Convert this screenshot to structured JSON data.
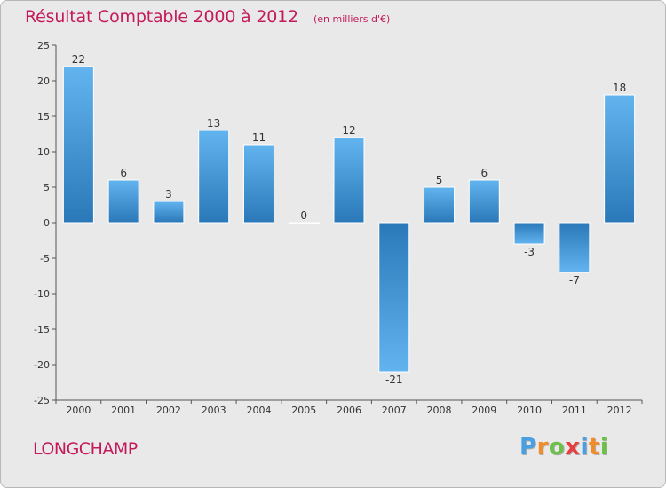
{
  "title": "Résultat Comptable 2000 à 2012",
  "unit_note": "(en milliers d'€)",
  "commune": "LONGCHAMP",
  "logo": {
    "letters": [
      "P",
      "r",
      "o",
      "x",
      "i",
      "t",
      "i"
    ],
    "colors": [
      "#4a9fe0",
      "#f08c2a",
      "#6cc04a",
      "#e83e3e",
      "#4a9fe0",
      "#f08c2a",
      "#6cc04a"
    ]
  },
  "colors": {
    "title": "#c41a5b",
    "bar_light": "#62b4ef",
    "bar_dark": "#2a78b8",
    "background": "#e9e9e9"
  },
  "chart_data": {
    "type": "bar",
    "title": "Résultat Comptable 2000 à 2012",
    "ylabel": "en milliers d'€",
    "xlabel": "",
    "categories": [
      "2000",
      "2001",
      "2002",
      "2003",
      "2004",
      "2005",
      "2006",
      "2007",
      "2008",
      "2009",
      "2010",
      "2011",
      "2012"
    ],
    "values": [
      22,
      6,
      3,
      13,
      11,
      0,
      12,
      -21,
      5,
      6,
      -3,
      -7,
      18
    ],
    "ylim": [
      -25,
      25
    ],
    "yticks": [
      25,
      20,
      15,
      10,
      5,
      0,
      -5,
      -10,
      -15,
      -20,
      -25
    ],
    "grid": false,
    "legend": "none"
  }
}
